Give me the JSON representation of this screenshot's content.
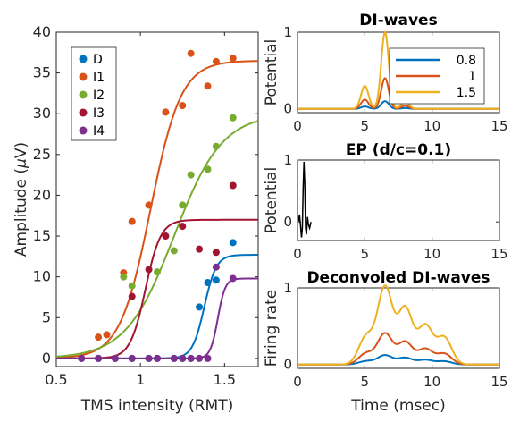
{
  "chart_data": [
    {
      "id": "main",
      "type": "scatter",
      "xlabel": "TMS intensity (RMT)",
      "ylabel_prefix": "Amplitude (",
      "ylabel_symbol": "μ",
      "ylabel_suffix": "V)",
      "xlim": [
        0.5,
        1.7
      ],
      "ylim": [
        -1,
        40
      ],
      "xticks": [
        0.5,
        1,
        1.5
      ],
      "xtick_labels": [
        "0.5",
        "1",
        "1.5"
      ],
      "yticks": [
        0,
        5,
        10,
        15,
        20,
        25,
        30,
        35,
        40
      ],
      "ytick_labels": [
        "0",
        "5",
        "10",
        "15",
        "20",
        "25",
        "30",
        "35",
        "40"
      ],
      "grid": false,
      "legend_position": "top-left",
      "series": [
        {
          "name": "D",
          "color": "#0072BD",
          "points": [
            [
              0.65,
              0
            ],
            [
              0.75,
              0
            ],
            [
              0.85,
              0
            ],
            [
              0.95,
              0
            ],
            [
              1.05,
              0
            ],
            [
              1.1,
              0
            ],
            [
              1.2,
              0
            ],
            [
              1.25,
              0
            ],
            [
              1.3,
              0
            ],
            [
              1.35,
              6.3
            ],
            [
              1.4,
              9.3
            ],
            [
              1.45,
              9.6
            ],
            [
              1.55,
              14.2
            ]
          ],
          "fit": {
            "max": 12.7,
            "x50": 1.38,
            "k": 28
          }
        },
        {
          "name": "I1",
          "color": "#D95319",
          "points": [
            [
              0.75,
              2.6
            ],
            [
              0.8,
              2.9
            ],
            [
              0.9,
              10.5
            ],
            [
              0.95,
              16.8
            ],
            [
              1.05,
              18.8
            ],
            [
              1.15,
              30.2
            ],
            [
              1.25,
              31.0
            ],
            [
              1.3,
              37.4
            ],
            [
              1.4,
              33.4
            ],
            [
              1.45,
              36.4
            ],
            [
              1.55,
              36.8
            ]
          ],
          "fit": {
            "max": 36.5,
            "x50": 1.06,
            "k": 11
          }
        },
        {
          "name": "I2",
          "color": "#77AC30",
          "points": [
            [
              0.9,
              10.0
            ],
            [
              0.95,
              8.9
            ],
            [
              1.1,
              10.6
            ],
            [
              1.2,
              13.2
            ],
            [
              1.25,
              18.8
            ],
            [
              1.3,
              22.5
            ],
            [
              1.4,
              23.2
            ],
            [
              1.45,
              26.0
            ],
            [
              1.55,
              29.5
            ]
          ],
          "fit": {
            "max": 30.0,
            "x50": 1.2,
            "k": 7
          }
        },
        {
          "name": "I3",
          "color": "#A2142F",
          "points": [
            [
              0.95,
              7.6
            ],
            [
              1.05,
              10.9
            ],
            [
              1.15,
              15.0
            ],
            [
              1.25,
              16.2
            ],
            [
              1.35,
              13.4
            ],
            [
              1.45,
              13.0
            ],
            [
              1.55,
              21.2
            ]
          ],
          "fit": {
            "max": 17.0,
            "x50": 1.03,
            "k": 22
          }
        },
        {
          "name": "I4",
          "color": "#7E2F8E",
          "points": [
            [
              0.65,
              0
            ],
            [
              0.75,
              0
            ],
            [
              0.85,
              0
            ],
            [
              0.95,
              0
            ],
            [
              1.05,
              0
            ],
            [
              1.1,
              0
            ],
            [
              1.2,
              0
            ],
            [
              1.25,
              0
            ],
            [
              1.3,
              0
            ],
            [
              1.35,
              0
            ],
            [
              1.4,
              0
            ],
            [
              1.45,
              11.2
            ],
            [
              1.55,
              9.8
            ]
          ],
          "fit": {
            "max": 9.8,
            "x50": 1.46,
            "k": 45
          }
        }
      ]
    },
    {
      "id": "diwaves",
      "type": "line",
      "title": "DI-waves",
      "xlabel": "",
      "ylabel": "Potential",
      "xlim": [
        0,
        15
      ],
      "ylim": [
        -0.05,
        1.0
      ],
      "xticks": [
        0,
        5,
        10,
        15
      ],
      "xtick_labels": [
        "0",
        "5",
        "10",
        "15"
      ],
      "yticks": [
        0,
        1
      ],
      "ytick_labels": [
        "0",
        "1"
      ],
      "legend_position": "right",
      "series": [
        {
          "name": "0.8",
          "color": "#0072BD",
          "scale": 0.1
        },
        {
          "name": "1",
          "color": "#D95319",
          "scale": 0.4
        },
        {
          "name": "1.5",
          "color": "#EDB120",
          "scale": 1.0
        }
      ],
      "peaks": [
        [
          5.0,
          0.3
        ],
        [
          6.5,
          1.0
        ],
        [
          8.0,
          0.1
        ]
      ],
      "peak_width": 0.28
    },
    {
      "id": "ep",
      "type": "line",
      "title": "EP (d/c=0.1)",
      "xlabel": "",
      "ylabel": "Potential",
      "xlim": [
        0,
        15
      ],
      "ylim": [
        -0.3,
        1.0
      ],
      "xticks": [
        0,
        5,
        10,
        15
      ],
      "xtick_labels": [
        "0",
        "5",
        "10",
        "15"
      ],
      "yticks": [
        0,
        1
      ],
      "ytick_labels": [
        "0",
        "1"
      ],
      "series": [
        {
          "name": "",
          "color": "#000000",
          "points": [
            [
              0,
              0
            ],
            [
              0.08,
              0.02
            ],
            [
              0.15,
              0.12
            ],
            [
              0.22,
              -0.05
            ],
            [
              0.3,
              -0.25
            ],
            [
              0.36,
              -0.1
            ],
            [
              0.42,
              0.55
            ],
            [
              0.48,
              0.97
            ],
            [
              0.54,
              0.6
            ],
            [
              0.6,
              -0.1
            ],
            [
              0.67,
              -0.2
            ],
            [
              0.74,
              0.08
            ],
            [
              0.82,
              -0.05
            ],
            [
              0.9,
              -0.1
            ],
            [
              1.0,
              0
            ]
          ]
        }
      ]
    },
    {
      "id": "deconv",
      "type": "line",
      "title": "Deconvoled DI-waves",
      "xlabel": "Time (msec)",
      "ylabel": "Firing rate",
      "xlim": [
        0,
        15
      ],
      "ylim": [
        -0.05,
        1.0
      ],
      "xticks": [
        0,
        5,
        10,
        15
      ],
      "xtick_labels": [
        "0",
        "5",
        "10",
        "15"
      ],
      "yticks": [
        0,
        1
      ],
      "ytick_labels": [
        "0",
        "1"
      ],
      "series": [
        {
          "name": "0.8",
          "color": "#0072BD",
          "scale": 0.12
        },
        {
          "name": "1",
          "color": "#D95319",
          "scale": 0.4
        },
        {
          "name": "1.5",
          "color": "#EDB120",
          "scale": 1.0
        }
      ],
      "peaks": [
        [
          5.1,
          0.36
        ],
        [
          6.5,
          1.0
        ],
        [
          8.0,
          0.73
        ],
        [
          9.5,
          0.5
        ],
        [
          10.9,
          0.35
        ]
      ],
      "peak_width": 0.55
    }
  ]
}
